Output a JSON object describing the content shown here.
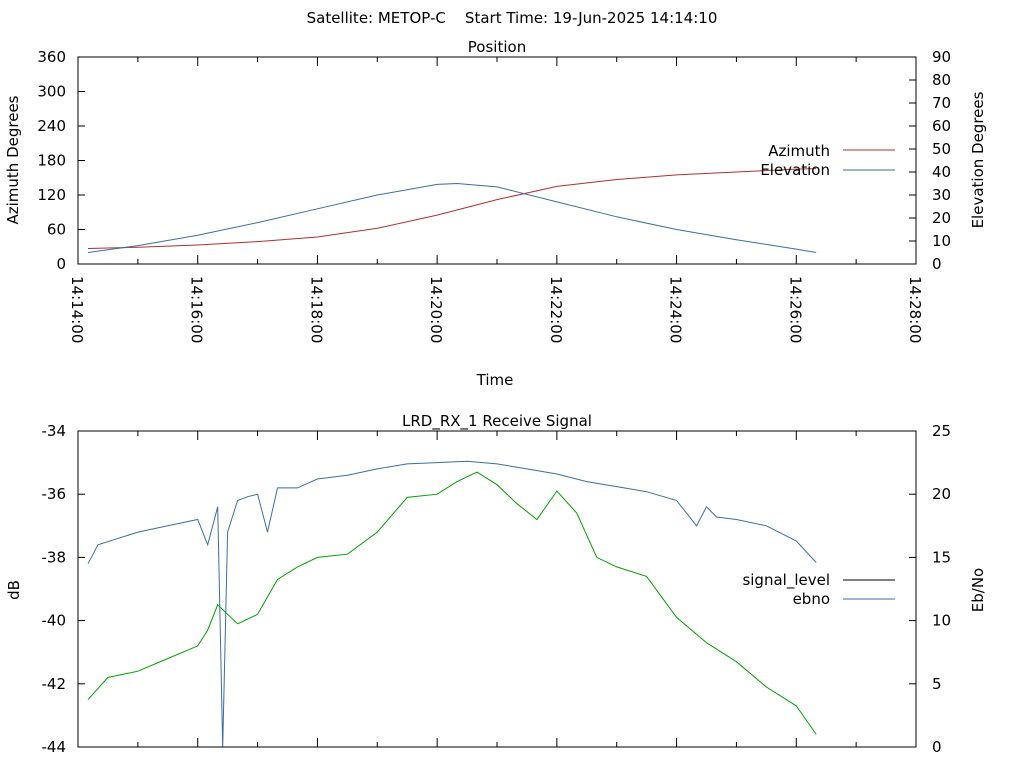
{
  "figure": {
    "title": "Satellite: METOP-C    Start Time: 19-Jun-2025 14:14:10"
  },
  "chart_data": [
    {
      "type": "line",
      "title": "Position",
      "xlabel": "Time",
      "ylabel": "Azimuth Degrees",
      "y2label": "Elevation Degrees",
      "xlim": [
        "14:14:00",
        "14:28:00"
      ],
      "ylim": [
        0,
        360
      ],
      "y2lim": [
        0,
        90
      ],
      "x_ticks": [
        "14:14:00",
        "14:16:00",
        "14:18:00",
        "14:20:00",
        "14:22:00",
        "14:24:00",
        "14:26:00",
        "14:28:00"
      ],
      "y_ticks": [
        "0",
        "60",
        "120",
        "180",
        "240",
        "300",
        "360"
      ],
      "y2_ticks": [
        "0",
        "10",
        "20",
        "30",
        "40",
        "50",
        "60",
        "70",
        "80",
        "90"
      ],
      "legend_position": "right",
      "grid": false,
      "series": [
        {
          "name": "Azimuth",
          "axis": "y",
          "color": "#b03030",
          "x": [
            "14:14:10",
            "14:15:00",
            "14:16:00",
            "14:17:00",
            "14:18:00",
            "14:19:00",
            "14:20:00",
            "14:21:00",
            "14:22:00",
            "14:23:00",
            "14:24:00",
            "14:25:00",
            "14:26:00",
            "14:26:20"
          ],
          "values": [
            27,
            29,
            33,
            39,
            47,
            62,
            85,
            112,
            135,
            147,
            155,
            160,
            165,
            166
          ]
        },
        {
          "name": "Elevation",
          "axis": "y2",
          "color": "#3a6ea5",
          "x": [
            "14:14:10",
            "14:15:00",
            "14:16:00",
            "14:17:00",
            "14:18:00",
            "14:19:00",
            "14:20:00",
            "14:20:20",
            "14:21:00",
            "14:22:00",
            "14:23:00",
            "14:24:00",
            "14:25:00",
            "14:26:00",
            "14:26:20"
          ],
          "values": [
            5,
            8,
            12.5,
            18,
            24,
            30,
            34.6,
            35,
            33.5,
            27,
            20.5,
            15,
            10.5,
            6.5,
            5
          ]
        }
      ]
    },
    {
      "type": "line",
      "title": "LRD_RX_1 Receive Signal",
      "xlabel": "",
      "ylabel": "dB",
      "y2label": "Eb/No",
      "xlim": [
        "14:14:00",
        "14:28:00"
      ],
      "ylim": [
        -44,
        -34
      ],
      "y2lim": [
        0,
        25
      ],
      "y_ticks": [
        "-34",
        "-36",
        "-38",
        "-40",
        "-42",
        "-44"
      ],
      "y2_ticks": [
        "0",
        "5",
        "10",
        "15",
        "20",
        "25"
      ],
      "legend_position": "right",
      "grid": false,
      "series": [
        {
          "name": "signal_level",
          "axis": "y",
          "color": "#000000",
          "x": [],
          "values": []
        },
        {
          "name": "ebno",
          "axis": "y2",
          "color": "#3a6ea5",
          "x": [
            "14:14:10",
            "14:14:20",
            "14:15:00",
            "14:15:30",
            "14:16:00",
            "14:16:10",
            "14:16:20",
            "14:16:25",
            "14:16:30",
            "14:16:40",
            "14:16:50",
            "14:17:00",
            "14:17:10",
            "14:17:20",
            "14:17:40",
            "14:18:00",
            "14:18:30",
            "14:19:00",
            "14:19:30",
            "14:20:00",
            "14:20:30",
            "14:21:00",
            "14:21:30",
            "14:22:00",
            "14:22:30",
            "14:23:00",
            "14:23:30",
            "14:24:00",
            "14:24:20",
            "14:24:30",
            "14:24:40",
            "14:25:00",
            "14:25:30",
            "14:26:00",
            "14:26:20"
          ],
          "values": [
            14.5,
            16,
            17,
            17.5,
            18,
            16,
            19,
            0,
            17,
            19.5,
            19.8,
            20,
            17,
            20.5,
            20.5,
            21.2,
            21.5,
            22,
            22.4,
            22.5,
            22.6,
            22.4,
            22,
            21.6,
            21,
            20.6,
            20.2,
            19.5,
            17.5,
            19,
            18.2,
            18,
            17.5,
            16.3,
            14.6
          ]
        },
        {
          "name": "",
          "axis": "y",
          "color": "#00a000",
          "x": [
            "14:14:10",
            "14:14:30",
            "14:15:00",
            "14:15:30",
            "14:16:00",
            "14:16:10",
            "14:16:20",
            "14:16:30",
            "14:16:40",
            "14:17:00",
            "14:17:20",
            "14:17:40",
            "14:18:00",
            "14:18:30",
            "14:19:00",
            "14:19:30",
            "14:20:00",
            "14:20:20",
            "14:20:40",
            "14:21:00",
            "14:21:20",
            "14:21:40",
            "14:22:00",
            "14:22:20",
            "14:22:40",
            "14:23:00",
            "14:23:30",
            "14:24:00",
            "14:24:30",
            "14:25:00",
            "14:25:30",
            "14:26:00",
            "14:26:20"
          ],
          "values": [
            -42.5,
            -41.8,
            -41.6,
            -41.2,
            -40.8,
            -40.3,
            -39.5,
            -39.8,
            -40.1,
            -39.8,
            -38.7,
            -38.3,
            -38.0,
            -37.9,
            -37.2,
            -36.1,
            -36.0,
            -35.6,
            -35.3,
            -35.7,
            -36.3,
            -36.8,
            -35.9,
            -36.6,
            -38.0,
            -38.3,
            -38.6,
            -39.9,
            -40.7,
            -41.3,
            -42.1,
            -42.7,
            -43.6
          ]
        }
      ]
    }
  ]
}
